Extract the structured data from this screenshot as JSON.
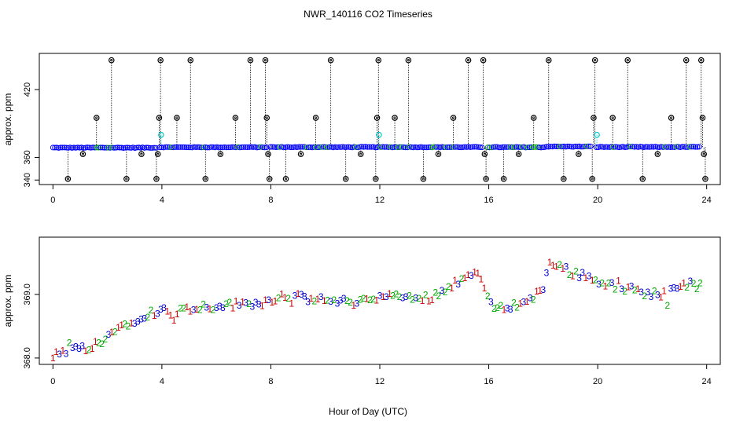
{
  "title": "NWR_140116  CO2 Timeseries",
  "xlabel": "Hour of Day (UTC)",
  "chart_data": [
    {
      "type": "scatter",
      "panel": "top",
      "ylabel": "approx. ppm",
      "xlim": [
        -0.5,
        24.5
      ],
      "ylim": [
        336,
        452
      ],
      "x_ticks": [
        0,
        4,
        8,
        12,
        16,
        20,
        24
      ],
      "y_ticks": [
        340,
        360,
        420
      ],
      "grid": false,
      "colors": {
        "baseline": "#0000ff",
        "baseline_alt": "#00aa00",
        "outlier": "#000000",
        "flagged": "#00cccc",
        "stems": "#000000"
      },
      "baseline": {
        "x_start": 0.0,
        "x_end": 23.8,
        "gap_hours": [
          3.85,
          7.9,
          15.85,
          19.85
        ],
        "level_segments": [
          [
            0,
            3.85,
            368.6
          ],
          [
            3.85,
            7.9,
            369.0
          ],
          [
            7.9,
            15.85,
            369.1
          ],
          [
            15.85,
            18.1,
            369.0
          ],
          [
            18.1,
            19.85,
            369.6
          ],
          [
            19.85,
            23.8,
            369.2
          ]
        ]
      },
      "outliers": [
        {
          "x": 0.55,
          "y": 341
        },
        {
          "x": 1.1,
          "y": 363
        },
        {
          "x": 1.6,
          "y": 395
        },
        {
          "x": 2.15,
          "y": 446
        },
        {
          "x": 2.7,
          "y": 341
        },
        {
          "x": 3.25,
          "y": 363
        },
        {
          "x": 3.8,
          "y": 341
        },
        {
          "x": 3.85,
          "y": 363
        },
        {
          "x": 3.9,
          "y": 395
        },
        {
          "x": 3.95,
          "y": 446
        },
        {
          "x": 4.55,
          "y": 395
        },
        {
          "x": 5.05,
          "y": 446
        },
        {
          "x": 5.6,
          "y": 341
        },
        {
          "x": 6.15,
          "y": 363
        },
        {
          "x": 6.7,
          "y": 395
        },
        {
          "x": 7.25,
          "y": 446
        },
        {
          "x": 7.8,
          "y": 446
        },
        {
          "x": 7.85,
          "y": 395
        },
        {
          "x": 7.9,
          "y": 363
        },
        {
          "x": 7.95,
          "y": 341
        },
        {
          "x": 8.55,
          "y": 341
        },
        {
          "x": 9.1,
          "y": 363
        },
        {
          "x": 9.65,
          "y": 395
        },
        {
          "x": 10.2,
          "y": 446
        },
        {
          "x": 10.75,
          "y": 341
        },
        {
          "x": 11.3,
          "y": 363
        },
        {
          "x": 11.85,
          "y": 341
        },
        {
          "x": 11.9,
          "y": 395
        },
        {
          "x": 11.95,
          "y": 446
        },
        {
          "x": 12.55,
          "y": 395
        },
        {
          "x": 13.05,
          "y": 446
        },
        {
          "x": 13.6,
          "y": 341
        },
        {
          "x": 14.15,
          "y": 363
        },
        {
          "x": 14.7,
          "y": 395
        },
        {
          "x": 15.25,
          "y": 446
        },
        {
          "x": 15.8,
          "y": 446
        },
        {
          "x": 15.85,
          "y": 363
        },
        {
          "x": 15.9,
          "y": 341
        },
        {
          "x": 16.55,
          "y": 341
        },
        {
          "x": 17.1,
          "y": 363
        },
        {
          "x": 17.65,
          "y": 395
        },
        {
          "x": 18.2,
          "y": 446
        },
        {
          "x": 18.75,
          "y": 341
        },
        {
          "x": 19.3,
          "y": 363
        },
        {
          "x": 19.8,
          "y": 341
        },
        {
          "x": 19.85,
          "y": 395
        },
        {
          "x": 19.9,
          "y": 446
        },
        {
          "x": 20.55,
          "y": 395
        },
        {
          "x": 21.1,
          "y": 446
        },
        {
          "x": 21.65,
          "y": 341
        },
        {
          "x": 22.2,
          "y": 363
        },
        {
          "x": 22.7,
          "y": 395
        },
        {
          "x": 23.25,
          "y": 446
        },
        {
          "x": 23.8,
          "y": 446
        },
        {
          "x": 23.85,
          "y": 395
        },
        {
          "x": 23.9,
          "y": 363
        },
        {
          "x": 23.95,
          "y": 341
        }
      ],
      "flagged": [
        {
          "x": 3.97,
          "y": 380
        },
        {
          "x": 11.97,
          "y": 380
        },
        {
          "x": 19.97,
          "y": 380
        }
      ]
    },
    {
      "type": "scatter",
      "panel": "bottom",
      "ylabel": "approx. ppm",
      "xlim": [
        -0.5,
        24.5
      ],
      "ylim": [
        367.9,
        369.9
      ],
      "x_ticks": [
        0,
        4,
        8,
        12,
        16,
        20,
        24
      ],
      "y_ticks": [
        368.0,
        369.0
      ],
      "grid": false,
      "marker_labels": [
        "1",
        "2",
        "3"
      ],
      "colors": {
        "1": "#cc0000",
        "2": "#00aa00",
        "3": "#0000cc"
      },
      "trend": {
        "x": [
          0,
          0.5,
          1.0,
          1.5,
          2.0,
          2.5,
          3.0,
          3.5,
          4.0,
          4.3,
          5.0,
          6.0,
          7.0,
          7.8,
          8.5,
          9.0,
          10.0,
          11.0,
          12.0,
          12.5,
          13.0,
          13.5,
          14.0,
          14.5,
          15.0,
          15.5,
          15.8,
          16.0,
          16.3,
          16.8,
          17.5,
          18.0,
          18.25,
          18.5,
          19.0,
          19.5,
          20.0,
          20.5,
          21.0,
          21.5,
          22.0,
          22.5,
          23.0,
          23.5,
          23.8
        ],
        "y": [
          368.05,
          368.1,
          368.15,
          368.2,
          368.35,
          368.5,
          368.6,
          368.7,
          368.75,
          368.72,
          368.78,
          368.82,
          368.85,
          368.88,
          369.0,
          368.95,
          368.9,
          368.88,
          368.95,
          368.98,
          368.95,
          368.92,
          368.98,
          369.1,
          369.25,
          369.35,
          369.2,
          368.85,
          368.78,
          368.82,
          368.9,
          369.1,
          369.55,
          369.45,
          369.35,
          369.3,
          369.2,
          369.15,
          369.1,
          369.05,
          369.0,
          369.02,
          369.1,
          369.18,
          369.2
        ]
      },
      "range": [
        368.0,
        369.7
      ]
    }
  ]
}
